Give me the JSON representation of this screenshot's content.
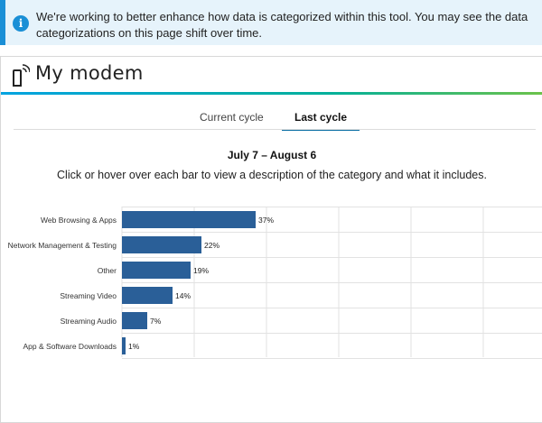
{
  "banner": {
    "text": "We're working to better enhance how data is categorized within this tool. You may see the data categorizations on this page shift over time.",
    "icon": "info-icon",
    "color": "#1a8fd6"
  },
  "card": {
    "title": "My modem",
    "icon": "modem-icon"
  },
  "tabs": [
    {
      "label": "Current cycle",
      "selected": false
    },
    {
      "label": "Last cycle",
      "selected": true
    }
  ],
  "date_range": "July 7 – August 6",
  "instruction": "Click or hover over each bar to view a description of the category and what it includes.",
  "chart_data": {
    "type": "bar",
    "orientation": "horizontal",
    "categories": [
      "Web Browsing & Apps",
      "Network Management & Testing",
      "Other",
      "Streaming Video",
      "Streaming Audio",
      "App & Software Downloads"
    ],
    "values": [
      37,
      22,
      19,
      14,
      7,
      1
    ],
    "value_labels": [
      "37%",
      "22%",
      "19%",
      "14%",
      "7%",
      "1%"
    ],
    "xlim": [
      0,
      100
    ],
    "grid": true,
    "bar_color": "#2a5f98"
  }
}
